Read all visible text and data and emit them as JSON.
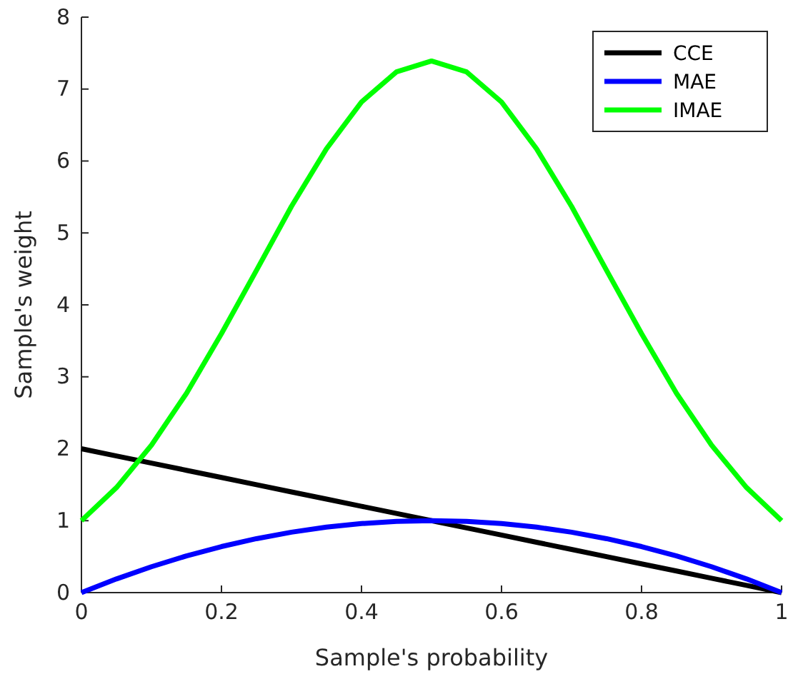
{
  "chart_data": {
    "type": "line",
    "xlabel": "Sample's probability",
    "ylabel": "Sample's weight",
    "x": [
      0,
      0.05,
      0.1,
      0.15,
      0.2,
      0.25,
      0.3,
      0.35,
      0.4,
      0.45,
      0.5,
      0.55,
      0.6,
      0.65,
      0.7,
      0.75,
      0.8,
      0.85,
      0.9,
      0.95,
      1
    ],
    "series": [
      {
        "name": "CCE",
        "color": "#000000",
        "values": [
          2,
          1.9,
          1.8,
          1.7,
          1.6,
          1.5,
          1.4,
          1.3,
          1.2,
          1.1,
          1,
          0.9,
          0.8,
          0.7,
          0.6,
          0.5,
          0.4,
          0.3,
          0.2,
          0.1,
          0
        ]
      },
      {
        "name": "MAE",
        "color": "#0000ff",
        "values": [
          0,
          0.19,
          0.36,
          0.51,
          0.64,
          0.75,
          0.84,
          0.91,
          0.96,
          0.99,
          1,
          0.99,
          0.96,
          0.91,
          0.84,
          0.75,
          0.64,
          0.51,
          0.36,
          0.19,
          0
        ]
      },
      {
        "name": "IMAE",
        "color": "#00ff00",
        "values": [
          1,
          1.46,
          2.05,
          2.77,
          3.6,
          4.48,
          5.37,
          6.17,
          6.82,
          7.24,
          7.39,
          7.24,
          6.82,
          6.17,
          5.37,
          4.48,
          3.6,
          2.77,
          2.05,
          1.46,
          1
        ]
      }
    ],
    "xlim": [
      0,
      1
    ],
    "xticks": [
      0,
      0.2,
      0.4,
      0.6,
      0.8,
      1
    ],
    "ylim": [
      0,
      8
    ],
    "yticks": [
      0,
      1,
      2,
      3,
      4,
      5,
      6,
      7,
      8
    ],
    "grid": false,
    "legend": "top right",
    "marker": "none",
    "line_style": "solid"
  }
}
